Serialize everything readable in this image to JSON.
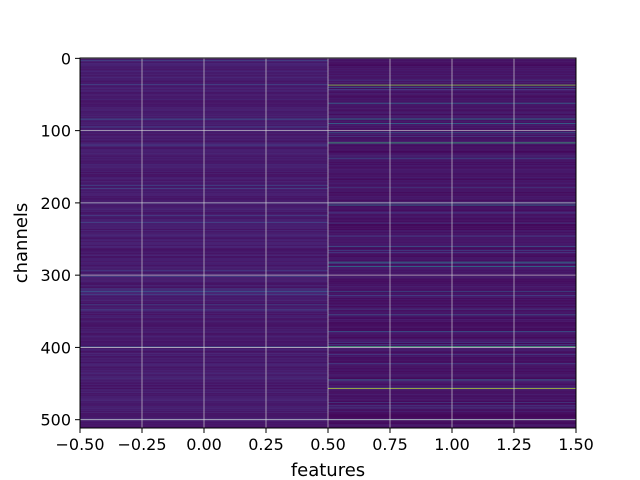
{
  "chart_data": {
    "type": "heatmap",
    "title": "",
    "xlabel": "features",
    "ylabel": "channels",
    "xlim": [
      -0.5,
      1.5
    ],
    "ylim": [
      511.5,
      -0.5
    ],
    "x_ticks": [
      -0.5,
      -0.25,
      0.0,
      0.25,
      0.5,
      0.75,
      1.0,
      1.25,
      1.5
    ],
    "x_tick_labels": [
      "−0.50",
      "−0.25",
      "0.00",
      "0.25",
      "0.50",
      "0.75",
      "1.00",
      "1.25",
      "1.50"
    ],
    "y_ticks": [
      0,
      100,
      200,
      300,
      400,
      500
    ],
    "y_tick_labels": [
      "0",
      "100",
      "200",
      "300",
      "400",
      "500"
    ],
    "grid": true,
    "colormap": "viridis",
    "value_range": [
      0,
      1
    ],
    "columns": 2,
    "rows": 512,
    "column_base_levels": [
      0.1,
      0.07
    ],
    "highlight_rows": [
      {
        "column": 1,
        "row": 37,
        "value": 0.88
      },
      {
        "column": 1,
        "row": 40,
        "value": 0.4
      },
      {
        "column": 1,
        "row": 62,
        "value": 0.45
      },
      {
        "column": 1,
        "row": 84,
        "value": 0.55
      },
      {
        "column": 1,
        "row": 90,
        "value": 0.45
      },
      {
        "column": 1,
        "row": 103,
        "value": 0.4
      },
      {
        "column": 1,
        "row": 117,
        "value": 0.75
      },
      {
        "column": 1,
        "row": 138,
        "value": 0.35
      },
      {
        "column": 1,
        "row": 200,
        "value": 0.6
      },
      {
        "column": 1,
        "row": 203,
        "value": 0.5
      },
      {
        "column": 1,
        "row": 260,
        "value": 0.35
      },
      {
        "column": 1,
        "row": 282,
        "value": 0.55
      },
      {
        "column": 1,
        "row": 288,
        "value": 0.5
      },
      {
        "column": 1,
        "row": 323,
        "value": 0.35
      },
      {
        "column": 1,
        "row": 355,
        "value": 0.35
      },
      {
        "column": 1,
        "row": 378,
        "value": 0.35
      },
      {
        "column": 1,
        "row": 399,
        "value": 0.75
      },
      {
        "column": 1,
        "row": 445,
        "value": 0.45
      },
      {
        "column": 1,
        "row": 457,
        "value": 0.92
      },
      {
        "column": 1,
        "row": 500,
        "value": 0.45
      },
      {
        "column": 0,
        "row": 84,
        "value": 0.35
      },
      {
        "column": 0,
        "row": 200,
        "value": 0.3
      },
      {
        "column": 0,
        "row": 323,
        "value": 0.3
      },
      {
        "column": 0,
        "row": 399,
        "value": 0.3
      },
      {
        "column": 0,
        "row": 500,
        "value": 0.3
      }
    ]
  }
}
